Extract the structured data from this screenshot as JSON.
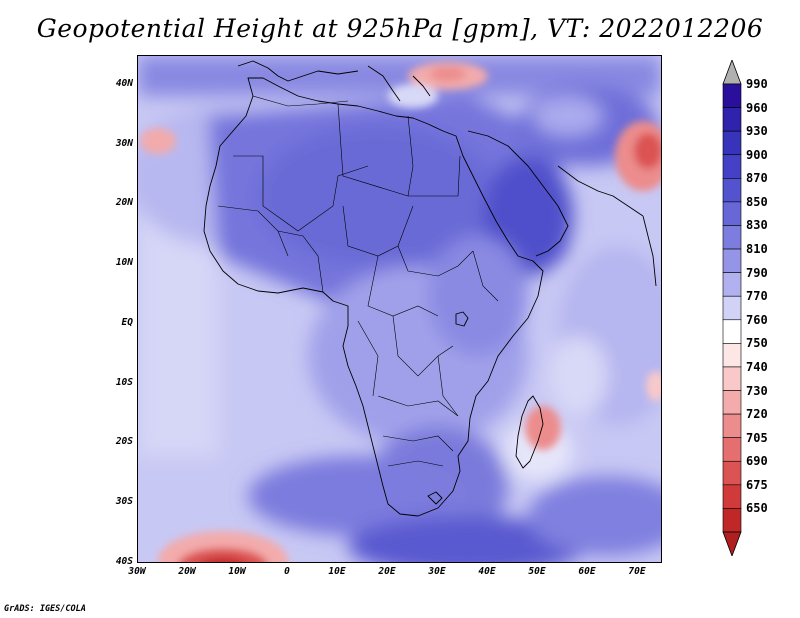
{
  "title": "Geopotential Height at 925hPa [gpm], VT: 2022012206",
  "credit": "GrADS: IGES/COLA",
  "map": {
    "lon_range": [
      -30,
      75
    ],
    "lat_range": [
      -40,
      45
    ],
    "y_ticks": [
      {
        "value": 40,
        "label": "40N"
      },
      {
        "value": 30,
        "label": "30N"
      },
      {
        "value": 20,
        "label": "20N"
      },
      {
        "value": 10,
        "label": "10N"
      },
      {
        "value": 0,
        "label": "EQ"
      },
      {
        "value": -10,
        "label": "10S"
      },
      {
        "value": -20,
        "label": "20S"
      },
      {
        "value": -30,
        "label": "30S"
      },
      {
        "value": -40,
        "label": "40S"
      }
    ],
    "x_ticks": [
      {
        "value": -30,
        "label": "30W"
      },
      {
        "value": -20,
        "label": "20W"
      },
      {
        "value": -10,
        "label": "10W"
      },
      {
        "value": 0,
        "label": "0"
      },
      {
        "value": 10,
        "label": "10E"
      },
      {
        "value": 20,
        "label": "20E"
      },
      {
        "value": 30,
        "label": "30E"
      },
      {
        "value": 40,
        "label": "40E"
      },
      {
        "value": 50,
        "label": "50E"
      },
      {
        "value": 60,
        "label": "60E"
      },
      {
        "value": 70,
        "label": "70E"
      }
    ]
  },
  "colorbar": {
    "levels": [
      {
        "label": "990",
        "color": "#2a0f9c"
      },
      {
        "label": "960",
        "color": "#2f22ad"
      },
      {
        "label": "930",
        "color": "#3833bb"
      },
      {
        "label": "900",
        "color": "#4441c6"
      },
      {
        "label": "870",
        "color": "#5353cf"
      },
      {
        "label": "850",
        "color": "#6767d8"
      },
      {
        "label": "830",
        "color": "#7d7de0"
      },
      {
        "label": "810",
        "color": "#9595e8"
      },
      {
        "label": "790",
        "color": "#b1b1ef"
      },
      {
        "label": "770",
        "color": "#d2d2f6"
      },
      {
        "label": "760",
        "color": "#ffffff"
      },
      {
        "label": "750",
        "color": "#fde6e6"
      },
      {
        "label": "740",
        "color": "#f9c9c9"
      },
      {
        "label": "730",
        "color": "#f3abab"
      },
      {
        "label": "720",
        "color": "#ec8c8c"
      },
      {
        "label": "705",
        "color": "#e56f6f"
      },
      {
        "label": "690",
        "color": "#dc5353"
      },
      {
        "label": "675",
        "color": "#d13a3a"
      },
      {
        "label": "650",
        "color": "#c02828"
      }
    ],
    "over_color": "#b0b0b0",
    "under_color": "#b01f1f"
  }
}
